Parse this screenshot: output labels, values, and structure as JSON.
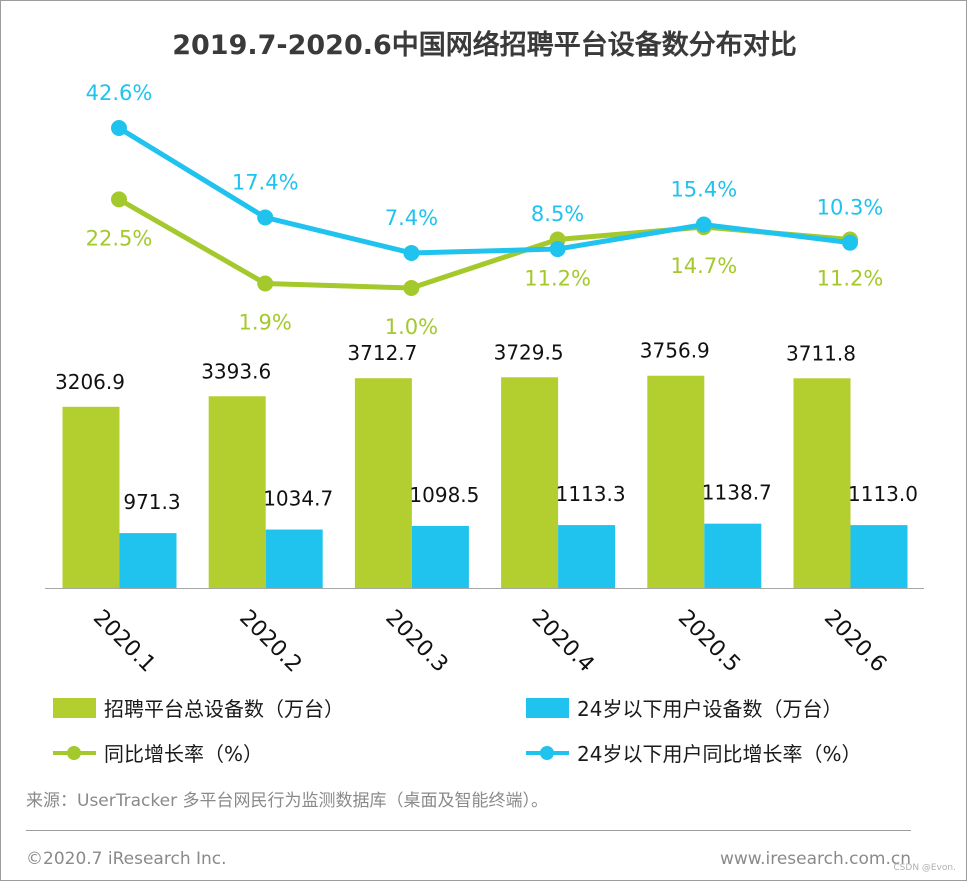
{
  "chart_data": {
    "type": "bar",
    "title": "2019.7-2020.6中国网络招聘平台设备数分布对比",
    "categories": [
      "2020.1",
      "2020.2",
      "2020.3",
      "2020.4",
      "2020.5",
      "2020.6"
    ],
    "series": [
      {
        "name": "招聘平台总设备数（万台）",
        "kind": "bar",
        "color": "#b2cf2f",
        "values": [
          3206.9,
          3393.6,
          3712.7,
          3729.5,
          3756.9,
          3711.8
        ],
        "labels": [
          "3206.9",
          "3393.6",
          "3712.7",
          "3729.5",
          "3756.9",
          "3711.8"
        ]
      },
      {
        "name": "24岁以下用户设备数（万台）",
        "kind": "bar",
        "color": "#1fc3ee",
        "values": [
          971.3,
          1034.7,
          1098.5,
          1113.3,
          1138.7,
          1113.0
        ],
        "labels": [
          "971.3",
          "1034.7",
          "1098.5",
          "1113.3",
          "1138.7",
          "1113.0"
        ]
      },
      {
        "name": "同比增长率（%）",
        "kind": "line",
        "color": "#a3c92c",
        "values": [
          22.5,
          1.9,
          1.0,
          11.2,
          14.7,
          11.2
        ],
        "labels": [
          "22.5%",
          "1.9%",
          "1.0%",
          "11.2%",
          "14.7%",
          "11.2%"
        ]
      },
      {
        "name": "24岁以下用户同比增长率（%）",
        "kind": "line",
        "color": "#1fc3ee",
        "values": [
          42.6,
          17.4,
          7.4,
          8.5,
          15.4,
          10.3
        ],
        "labels": [
          "42.6%",
          "17.4%",
          "7.4%",
          "8.5%",
          "15.4%",
          "10.3%"
        ]
      }
    ],
    "legend_position": "bottom",
    "grid": false
  },
  "footer": {
    "source": "来源：UserTracker 多平台网民行为监测数据库（桌面及智能终端）。",
    "copyright": "©2020.7 iResearch Inc.",
    "website": "www.iresearch.com.cn",
    "watermark": "CSDN @Evon."
  }
}
